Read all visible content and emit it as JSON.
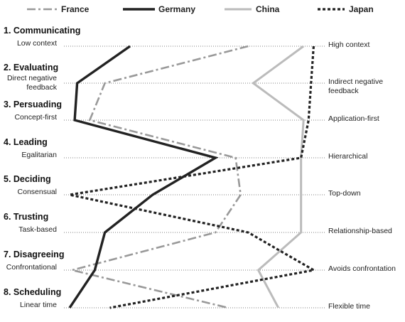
{
  "chart_data": {
    "type": "line",
    "orientation": "vertical-profile",
    "x_scale": [
      0,
      100
    ],
    "series": [
      {
        "name": "France",
        "color": "#999999",
        "dash": "dashdot",
        "values": [
          71,
          14,
          8,
          66,
          68,
          58,
          1,
          63
        ]
      },
      {
        "name": "Germany",
        "color": "#222222",
        "dash": "solid",
        "values": [
          24,
          3,
          2,
          58,
          33,
          14,
          10,
          0
        ]
      },
      {
        "name": "China",
        "color": "#bbbbbb",
        "dash": "solid",
        "values": [
          93,
          73,
          93,
          92,
          92,
          92,
          75,
          83
        ]
      },
      {
        "name": "Japan",
        "color": "#222222",
        "dash": "dotted",
        "values": [
          97,
          96,
          95,
          92,
          0,
          71,
          97,
          16
        ]
      }
    ],
    "dimensions": [
      {
        "title": "1. Communicating",
        "left": "Low context",
        "right": "High context"
      },
      {
        "title": "2. Evaluating",
        "left": "Direct negative feedback",
        "right": "Indirect negative feedback"
      },
      {
        "title": "3. Persuading",
        "left": "Concept-first",
        "right": "Application-first"
      },
      {
        "title": "4. Leading",
        "left": "Egalitarian",
        "right": "Hierarchical"
      },
      {
        "title": "5. Deciding",
        "left": "Consensual",
        "right": "Top-down"
      },
      {
        "title": "6. Trusting",
        "left": "Task-based",
        "right": "Relationship-based"
      },
      {
        "title": "7. Disagreeing",
        "left": "Confrontational",
        "right": "Avoids confrontation"
      },
      {
        "title": "8. Scheduling",
        "left": "Linear time",
        "right": "Flexible time"
      }
    ]
  }
}
